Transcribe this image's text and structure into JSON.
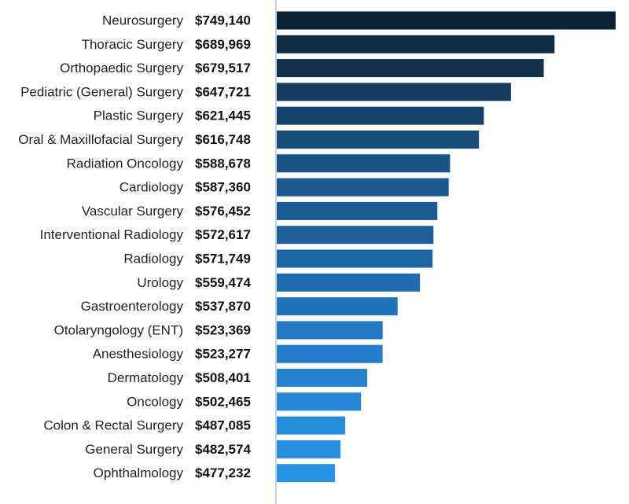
{
  "chart_data": {
    "type": "bar",
    "orientation": "horizontal",
    "title": "",
    "xlabel": "",
    "ylabel": "",
    "value_prefix": "$",
    "categories": [
      "Neurosurgery",
      "Thoracic Surgery",
      "Orthopaedic Surgery",
      "Pediatric (General) Surgery",
      "Plastic Surgery",
      "Oral & Maxillofacial Surgery",
      "Radiation Oncology",
      "Cardiology",
      "Vascular Surgery",
      "Interventional Radiology",
      "Radiology",
      "Urology",
      "Gastroenterology",
      "Otolaryngology (ENT)",
      "Anesthesiology",
      "Dermatology",
      "Oncology",
      "Colon & Rectal Surgery",
      "General Surgery",
      "Ophthalmology"
    ],
    "values": [
      749140,
      689969,
      679517,
      647721,
      621445,
      616748,
      588678,
      587360,
      576452,
      572617,
      571749,
      559474,
      537870,
      523369,
      523277,
      508401,
      502465,
      487085,
      482574,
      477232
    ],
    "value_labels": [
      "$749,140",
      "$689,969",
      "$679,517",
      "$647,721",
      "$621,445",
      "$616,748",
      "$588,678",
      "$587,360",
      "$576,452",
      "$572,617",
      "$571,749",
      "$559,474",
      "$537,870",
      "$523,369",
      "$523,277",
      "$508,401",
      "$502,465",
      "$487,085",
      "$482,574",
      "$477,232"
    ],
    "bar_colors": [
      "#0c2236",
      "#102a42",
      "#13314d",
      "#153d60",
      "#16436a",
      "#184e7b",
      "#1a5487",
      "#1b5990",
      "#1c5c94",
      "#1d6099",
      "#1e66a3",
      "#1f6dae",
      "#2174bb",
      "#2278c3",
      "#237dca",
      "#2482d1",
      "#2587d6",
      "#268cdc",
      "#268fe0",
      "#2792e4"
    ],
    "axis_color": "#c6d3e0",
    "label_color": "#1f1f1f",
    "value_label_color": "#111111"
  }
}
